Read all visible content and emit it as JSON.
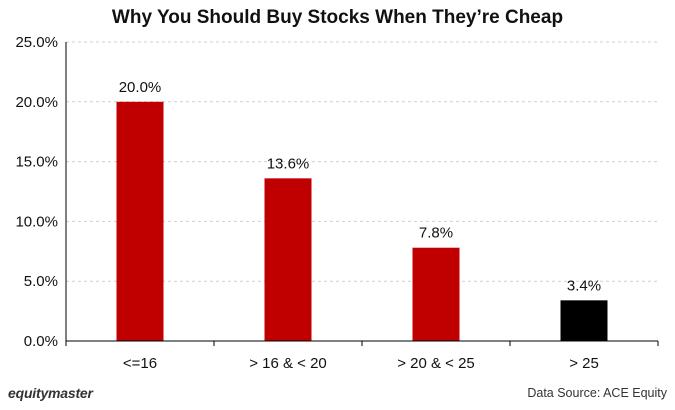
{
  "title": "Why You Should Buy Stocks When They’re Cheap",
  "footer": {
    "brand": "equitymaster",
    "source": "Data Source: ACE Equity"
  },
  "colors": {
    "primary_bar": "#c00000",
    "highlight_bar": "#000000",
    "gridline": "#d0d0d0",
    "axis": "#000000"
  },
  "chart_data": {
    "type": "bar",
    "title": "Why You Should Buy Stocks When They’re Cheap",
    "xlabel": "",
    "ylabel": "",
    "categories": [
      "<=16",
      "> 16 & < 20",
      "> 20 & < 25",
      "> 25"
    ],
    "values": [
      20.0,
      13.6,
      7.8,
      3.4
    ],
    "value_labels": [
      "20.0%",
      "13.6%",
      "7.8%",
      "3.4%"
    ],
    "bar_colors": [
      "#c00000",
      "#c00000",
      "#c00000",
      "#000000"
    ],
    "ylim": [
      0,
      25
    ],
    "yticks": [
      0,
      5,
      10,
      15,
      20,
      25
    ],
    "ytick_labels": [
      "0.0%",
      "5.0%",
      "10.0%",
      "15.0%",
      "20.0%",
      "25.0%"
    ],
    "grid": true,
    "legend": "none"
  }
}
